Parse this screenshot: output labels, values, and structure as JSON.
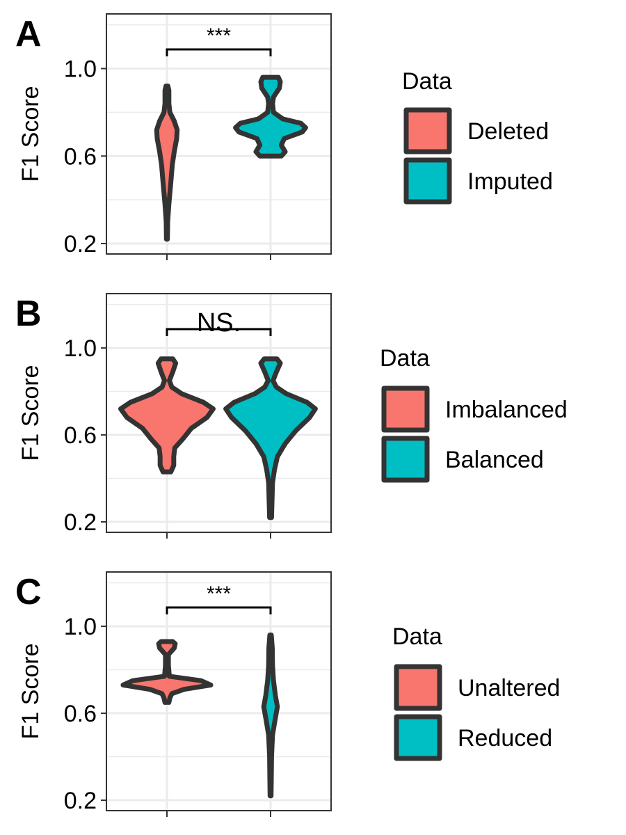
{
  "colors": {
    "first": "#F8766D",
    "second": "#00BFC4",
    "outline": "#333333",
    "grid": "#EBEBEB",
    "panel_border": "#333333"
  },
  "chart_data": [
    {
      "type": "violin",
      "panel_label": "A",
      "ylabel": "F1 Score",
      "yticks": [
        0.2,
        0.6,
        1.0
      ],
      "ytick_labels": [
        "0.2",
        "0.6",
        "1.0"
      ],
      "ylim": [
        0.2,
        1.25
      ],
      "significance": "***",
      "legend": {
        "title": "Data",
        "placement": "right",
        "entries": [
          "Deleted",
          "Imputed"
        ]
      },
      "series": [
        {
          "name": "Deleted",
          "min": 0.22,
          "max": 0.92,
          "profile": [
            [
              0.22,
              0.01
            ],
            [
              0.3,
              0.015
            ],
            [
              0.38,
              0.04
            ],
            [
              0.48,
              0.08
            ],
            [
              0.56,
              0.11
            ],
            [
              0.62,
              0.15
            ],
            [
              0.68,
              0.2
            ],
            [
              0.72,
              0.21
            ],
            [
              0.76,
              0.15
            ],
            [
              0.8,
              0.06
            ],
            [
              0.84,
              0.04
            ],
            [
              0.9,
              0.04
            ],
            [
              0.92,
              0.02
            ]
          ]
        },
        {
          "name": "Imputed",
          "min": 0.6,
          "max": 0.96,
          "profile": [
            [
              0.6,
              0.22
            ],
            [
              0.62,
              0.3
            ],
            [
              0.65,
              0.22
            ],
            [
              0.68,
              0.28
            ],
            [
              0.71,
              0.65
            ],
            [
              0.73,
              0.72
            ],
            [
              0.75,
              0.62
            ],
            [
              0.77,
              0.25
            ],
            [
              0.8,
              0.06
            ],
            [
              0.84,
              0.04
            ],
            [
              0.87,
              0.06
            ],
            [
              0.91,
              0.18
            ],
            [
              0.94,
              0.2
            ],
            [
              0.96,
              0.16
            ]
          ]
        }
      ]
    },
    {
      "type": "violin",
      "panel_label": "B",
      "ylabel": "F1 Score",
      "yticks": [
        0.2,
        0.6,
        1.0
      ],
      "ytick_labels": [
        "0.2",
        "0.6",
        "1.0"
      ],
      "ylim": [
        0.2,
        1.25
      ],
      "significance": "NS.",
      "legend": {
        "title": "Data",
        "placement": "right",
        "entries": [
          "Imbalanced",
          "Balanced"
        ]
      },
      "series": [
        {
          "name": "Imbalanced",
          "min": 0.43,
          "max": 0.95,
          "profile": [
            [
              0.43,
              0.08
            ],
            [
              0.46,
              0.14
            ],
            [
              0.5,
              0.14
            ],
            [
              0.54,
              0.16
            ],
            [
              0.58,
              0.32
            ],
            [
              0.63,
              0.5
            ],
            [
              0.68,
              0.82
            ],
            [
              0.72,
              0.95
            ],
            [
              0.75,
              0.75
            ],
            [
              0.79,
              0.3
            ],
            [
              0.82,
              0.1
            ],
            [
              0.85,
              0.05
            ],
            [
              0.89,
              0.12
            ],
            [
              0.93,
              0.18
            ],
            [
              0.95,
              0.12
            ]
          ]
        },
        {
          "name": "Balanced",
          "min": 0.22,
          "max": 0.95,
          "profile": [
            [
              0.22,
              0.02
            ],
            [
              0.3,
              0.03
            ],
            [
              0.38,
              0.04
            ],
            [
              0.44,
              0.08
            ],
            [
              0.5,
              0.14
            ],
            [
              0.56,
              0.3
            ],
            [
              0.62,
              0.52
            ],
            [
              0.68,
              0.8
            ],
            [
              0.72,
              0.92
            ],
            [
              0.75,
              0.75
            ],
            [
              0.79,
              0.32
            ],
            [
              0.82,
              0.12
            ],
            [
              0.85,
              0.05
            ],
            [
              0.89,
              0.12
            ],
            [
              0.93,
              0.2
            ],
            [
              0.95,
              0.13
            ]
          ]
        }
      ]
    },
    {
      "type": "violin",
      "panel_label": "C",
      "ylabel": "F1 Score",
      "yticks": [
        0.2,
        0.6,
        1.0
      ],
      "ytick_labels": [
        "0.2",
        "0.6",
        "1.0"
      ],
      "ylim": [
        0.2,
        1.25
      ],
      "significance": "***",
      "legend": {
        "title": "Data",
        "placement": "right",
        "entries": [
          "Unaltered",
          "Reduced"
        ]
      },
      "series": [
        {
          "name": "Unaltered",
          "min": 0.65,
          "max": 0.93,
          "profile": [
            [
              0.65,
              0.04
            ],
            [
              0.67,
              0.06
            ],
            [
              0.69,
              0.1
            ],
            [
              0.71,
              0.35
            ],
            [
              0.73,
              0.9
            ],
            [
              0.75,
              0.7
            ],
            [
              0.77,
              0.05
            ],
            [
              0.82,
              0.03
            ],
            [
              0.87,
              0.03
            ],
            [
              0.9,
              0.15
            ],
            [
              0.92,
              0.17
            ],
            [
              0.93,
              0.12
            ]
          ]
        },
        {
          "name": "Reduced",
          "min": 0.22,
          "max": 0.96,
          "profile": [
            [
              0.22,
              0.01
            ],
            [
              0.3,
              0.015
            ],
            [
              0.4,
              0.02
            ],
            [
              0.5,
              0.04
            ],
            [
              0.58,
              0.1
            ],
            [
              0.63,
              0.14
            ],
            [
              0.68,
              0.1
            ],
            [
              0.75,
              0.06
            ],
            [
              0.82,
              0.04
            ],
            [
              0.9,
              0.035
            ],
            [
              0.96,
              0.015
            ]
          ]
        }
      ]
    }
  ]
}
